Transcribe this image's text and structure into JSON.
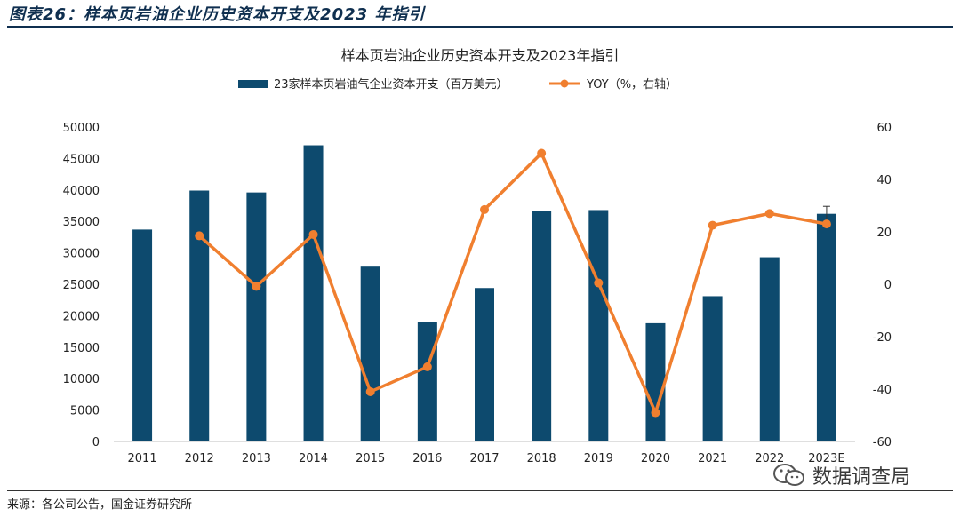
{
  "figure": {
    "caption": "图表26：样本页岩油企业历史资本开支及2023 年指引",
    "source": "来源：各公司公告，国金证券研究所",
    "watermark": "数据调查局"
  },
  "colors": {
    "bar": "#0d4a6e",
    "line": "#f07f2f",
    "header": "#0f2f4f"
  },
  "chart_data": {
    "type": "bar",
    "title": "样本页岩油企业历史资本开支及2023年指引",
    "categories": [
      "2011",
      "2012",
      "2013",
      "2014",
      "2015",
      "2016",
      "2017",
      "2018",
      "2019",
      "2020",
      "2021",
      "2022",
      "2023E"
    ],
    "series": [
      {
        "name": "23家样本页岩油气企业资本开支（百万美元）",
        "type": "bar",
        "axis": "left",
        "values": [
          33700,
          39900,
          39600,
          47100,
          27800,
          19000,
          24400,
          36600,
          36800,
          18800,
          23100,
          29300,
          36200
        ]
      },
      {
        "name": "YOY（%，右轴）",
        "type": "line",
        "axis": "right",
        "values": [
          null,
          18.5,
          -0.8,
          19.0,
          -41.0,
          -31.5,
          28.5,
          50.0,
          0.5,
          -49.0,
          22.5,
          27.0,
          23.0
        ]
      }
    ],
    "error_bar": {
      "category": "2023E",
      "low": 35500,
      "high": 37400
    },
    "y_left": {
      "min": 0,
      "max": 50000,
      "ticks": [
        "0",
        "5000",
        "10000",
        "15000",
        "20000",
        "25000",
        "30000",
        "35000",
        "40000",
        "45000",
        "50000"
      ]
    },
    "y_right": {
      "min": -60,
      "max": 60,
      "ticks": [
        "-60",
        "-40",
        "-20",
        "0",
        "20",
        "40",
        "60"
      ]
    },
    "legend_position": "top-center",
    "grid": false
  }
}
